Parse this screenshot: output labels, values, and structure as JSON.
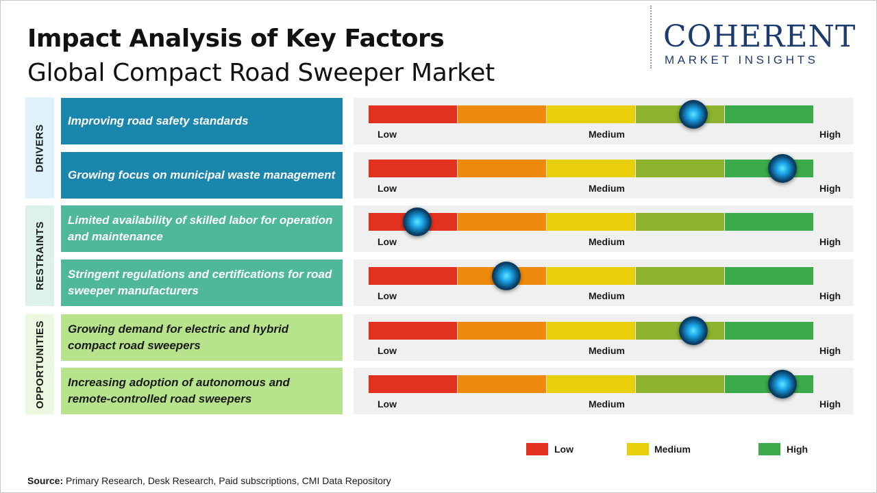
{
  "header": {
    "title": "Impact Analysis of Key Factors",
    "subtitle": "Global Compact Road Sweeper Market"
  },
  "logo": {
    "text": "COHERENT",
    "tagline": "MARKET INSIGHTS"
  },
  "scale_labels": {
    "low": "Low",
    "medium": "Medium",
    "high": "High"
  },
  "colors": {
    "segments": [
      "#e2321f",
      "#ee8a0b",
      "#e7cf0c",
      "#8cb22e",
      "#3aaa4a"
    ],
    "drivers_box": "#1a85ad",
    "drivers_label_bg": "#def2fb",
    "restraints_box": "#4fb89b",
    "restraints_label_bg": "#ddf2ec",
    "opportunities_box": "#b6e38c",
    "opportunities_label_bg": "#ecf8df",
    "knob": "#1aa3e6"
  },
  "chart_data": {
    "type": "table",
    "scale": [
      "Low",
      "Medium",
      "High"
    ],
    "categories": [
      {
        "name": "DRIVERS",
        "factors": [
          {
            "text": "Improving road safety standards",
            "impact": 0.73
          },
          {
            "text": "Growing focus on municipal waste management",
            "impact": 0.93
          }
        ]
      },
      {
        "name": "RESTRAINTS",
        "factors": [
          {
            "text": "Limited availability of skilled labor for operation and maintenance",
            "impact": 0.11
          },
          {
            "text": "Stringent regulations and certifications for road sweeper manufacturers",
            "impact": 0.31
          }
        ]
      },
      {
        "name": "OPPORTUNITIES",
        "factors": [
          {
            "text": "Growing demand for electric and hybrid compact road sweepers",
            "impact": 0.73
          },
          {
            "text": "Increasing adoption of autonomous and remote-controlled road sweepers",
            "impact": 0.93
          }
        ]
      }
    ]
  },
  "legend": [
    {
      "label": "Low",
      "color": "#e2321f"
    },
    {
      "label": "Medium",
      "color": "#e7cf0c"
    },
    {
      "label": "High",
      "color": "#3aaa4a"
    }
  ],
  "source": {
    "label": "Source:",
    "text": "Primary Research, Desk Research, Paid subscriptions, CMI Data Repository"
  }
}
